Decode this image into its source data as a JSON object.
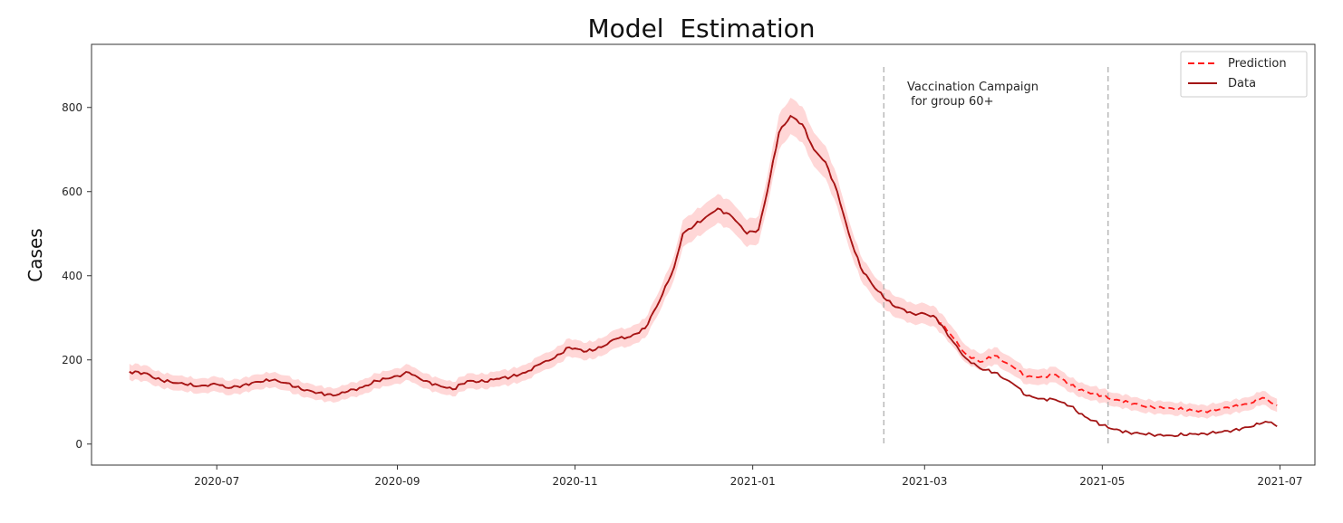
{
  "chart_data": {
    "type": "line",
    "title": "Model  Estimation",
    "xlabel": "",
    "ylabel": "Cases",
    "x_tick_labels": [
      "2020-07",
      "2020-09",
      "2020-11",
      "2021-01",
      "2021-03",
      "2021-05",
      "2021-07"
    ],
    "y_ticks": [
      0,
      200,
      400,
      600,
      800
    ],
    "xlim": [
      "2020-05-19",
      "2021-07-13"
    ],
    "ylim": [
      -50,
      950
    ],
    "grid": false,
    "legend_position": "top-right",
    "colors": {
      "prediction": "#ff1a1a",
      "data": "#a31515",
      "band": "#ffc9c9",
      "vline": "#b0b0b0"
    },
    "annotation": {
      "line1": "Vaccination Campaign",
      "line2": " for group 60+"
    },
    "vertical_lines": [
      "2021-02-15",
      "2021-05-03"
    ],
    "series": [
      {
        "name": "Prediction",
        "style": "dashed",
        "points": [
          [
            "2020-06-01",
            172
          ],
          [
            "2020-06-07",
            168
          ],
          [
            "2020-06-10",
            155
          ],
          [
            "2020-06-15",
            148
          ],
          [
            "2020-06-20",
            142
          ],
          [
            "2020-06-25",
            138
          ],
          [
            "2020-07-01",
            142
          ],
          [
            "2020-07-05",
            133
          ],
          [
            "2020-07-10",
            140
          ],
          [
            "2020-07-15",
            148
          ],
          [
            "2020-07-20",
            152
          ],
          [
            "2020-07-25",
            145
          ],
          [
            "2020-07-30",
            130
          ],
          [
            "2020-08-05",
            122
          ],
          [
            "2020-08-10",
            115
          ],
          [
            "2020-08-15",
            125
          ],
          [
            "2020-08-20",
            135
          ],
          [
            "2020-08-25",
            150
          ],
          [
            "2020-09-01",
            162
          ],
          [
            "2020-09-05",
            170
          ],
          [
            "2020-09-10",
            150
          ],
          [
            "2020-09-15",
            140
          ],
          [
            "2020-09-20",
            130
          ],
          [
            "2020-09-25",
            150
          ],
          [
            "2020-10-01",
            148
          ],
          [
            "2020-10-05",
            155
          ],
          [
            "2020-10-10",
            160
          ],
          [
            "2020-10-15",
            170
          ],
          [
            "2020-10-20",
            190
          ],
          [
            "2020-10-25",
            205
          ],
          [
            "2020-10-30",
            230
          ],
          [
            "2020-11-05",
            220
          ],
          [
            "2020-11-10",
            230
          ],
          [
            "2020-11-15",
            250
          ],
          [
            "2020-11-20",
            255
          ],
          [
            "2020-11-25",
            275
          ],
          [
            "2020-11-30",
            340
          ],
          [
            "2020-12-05",
            420
          ],
          [
            "2020-12-08",
            500
          ],
          [
            "2020-12-12",
            520
          ],
          [
            "2020-12-16",
            540
          ],
          [
            "2020-12-20",
            560
          ],
          [
            "2020-12-25",
            540
          ],
          [
            "2020-12-30",
            500
          ],
          [
            "2021-01-03",
            510
          ],
          [
            "2021-01-06",
            600
          ],
          [
            "2021-01-10",
            740
          ],
          [
            "2021-01-14",
            780
          ],
          [
            "2021-01-18",
            760
          ],
          [
            "2021-01-22",
            700
          ],
          [
            "2021-01-26",
            670
          ],
          [
            "2021-01-30",
            600
          ],
          [
            "2021-02-03",
            500
          ],
          [
            "2021-02-07",
            420
          ],
          [
            "2021-02-12",
            370
          ],
          [
            "2021-02-18",
            330
          ],
          [
            "2021-02-25",
            310
          ],
          [
            "2021-03-01",
            310
          ],
          [
            "2021-03-05",
            300
          ],
          [
            "2021-03-10",
            260
          ],
          [
            "2021-03-15",
            215
          ],
          [
            "2021-03-20",
            195
          ],
          [
            "2021-03-25",
            210
          ],
          [
            "2021-04-01",
            180
          ],
          [
            "2021-04-05",
            160
          ],
          [
            "2021-04-10",
            160
          ],
          [
            "2021-04-15",
            165
          ],
          [
            "2021-04-20",
            140
          ],
          [
            "2021-04-25",
            125
          ],
          [
            "2021-05-01",
            115
          ],
          [
            "2021-05-05",
            105
          ],
          [
            "2021-05-10",
            100
          ],
          [
            "2021-05-15",
            90
          ],
          [
            "2021-05-20",
            88
          ],
          [
            "2021-05-25",
            85
          ],
          [
            "2021-06-01",
            80
          ],
          [
            "2021-06-05",
            78
          ],
          [
            "2021-06-10",
            82
          ],
          [
            "2021-06-15",
            90
          ],
          [
            "2021-06-20",
            95
          ],
          [
            "2021-06-25",
            110
          ],
          [
            "2021-06-30",
            92
          ]
        ]
      },
      {
        "name": "Data",
        "style": "solid",
        "points": [
          [
            "2020-06-01",
            172
          ],
          [
            "2020-06-07",
            168
          ],
          [
            "2020-06-10",
            155
          ],
          [
            "2020-06-15",
            148
          ],
          [
            "2020-06-20",
            142
          ],
          [
            "2020-06-25",
            138
          ],
          [
            "2020-07-01",
            142
          ],
          [
            "2020-07-05",
            133
          ],
          [
            "2020-07-10",
            140
          ],
          [
            "2020-07-15",
            148
          ],
          [
            "2020-07-20",
            152
          ],
          [
            "2020-07-25",
            145
          ],
          [
            "2020-07-30",
            130
          ],
          [
            "2020-08-05",
            122
          ],
          [
            "2020-08-10",
            115
          ],
          [
            "2020-08-15",
            125
          ],
          [
            "2020-08-20",
            135
          ],
          [
            "2020-08-25",
            150
          ],
          [
            "2020-09-01",
            162
          ],
          [
            "2020-09-05",
            170
          ],
          [
            "2020-09-10",
            150
          ],
          [
            "2020-09-15",
            140
          ],
          [
            "2020-09-20",
            130
          ],
          [
            "2020-09-25",
            150
          ],
          [
            "2020-10-01",
            148
          ],
          [
            "2020-10-05",
            155
          ],
          [
            "2020-10-10",
            160
          ],
          [
            "2020-10-15",
            170
          ],
          [
            "2020-10-20",
            190
          ],
          [
            "2020-10-25",
            205
          ],
          [
            "2020-10-30",
            230
          ],
          [
            "2020-11-05",
            220
          ],
          [
            "2020-11-10",
            230
          ],
          [
            "2020-11-15",
            250
          ],
          [
            "2020-11-20",
            255
          ],
          [
            "2020-11-25",
            275
          ],
          [
            "2020-11-30",
            340
          ],
          [
            "2020-12-05",
            420
          ],
          [
            "2020-12-08",
            500
          ],
          [
            "2020-12-12",
            520
          ],
          [
            "2020-12-16",
            540
          ],
          [
            "2020-12-20",
            560
          ],
          [
            "2020-12-25",
            540
          ],
          [
            "2020-12-30",
            500
          ],
          [
            "2021-01-03",
            510
          ],
          [
            "2021-01-06",
            600
          ],
          [
            "2021-01-10",
            740
          ],
          [
            "2021-01-14",
            780
          ],
          [
            "2021-01-18",
            760
          ],
          [
            "2021-01-22",
            700
          ],
          [
            "2021-01-26",
            670
          ],
          [
            "2021-01-30",
            600
          ],
          [
            "2021-02-03",
            500
          ],
          [
            "2021-02-07",
            420
          ],
          [
            "2021-02-12",
            370
          ],
          [
            "2021-02-18",
            330
          ],
          [
            "2021-02-25",
            310
          ],
          [
            "2021-03-01",
            310
          ],
          [
            "2021-03-05",
            300
          ],
          [
            "2021-03-10",
            250
          ],
          [
            "2021-03-15",
            205
          ],
          [
            "2021-03-20",
            180
          ],
          [
            "2021-03-25",
            170
          ],
          [
            "2021-04-01",
            140
          ],
          [
            "2021-04-05",
            115
          ],
          [
            "2021-04-10",
            108
          ],
          [
            "2021-04-15",
            105
          ],
          [
            "2021-04-20",
            90
          ],
          [
            "2021-04-25",
            65
          ],
          [
            "2021-05-01",
            45
          ],
          [
            "2021-05-05",
            35
          ],
          [
            "2021-05-10",
            28
          ],
          [
            "2021-05-15",
            24
          ],
          [
            "2021-05-20",
            22
          ],
          [
            "2021-05-25",
            20
          ],
          [
            "2021-06-01",
            24
          ],
          [
            "2021-06-05",
            25
          ],
          [
            "2021-06-10",
            28
          ],
          [
            "2021-06-15",
            33
          ],
          [
            "2021-06-20",
            40
          ],
          [
            "2021-06-25",
            50
          ],
          [
            "2021-06-28",
            52
          ],
          [
            "2021-06-30",
            42
          ]
        ]
      }
    ]
  }
}
